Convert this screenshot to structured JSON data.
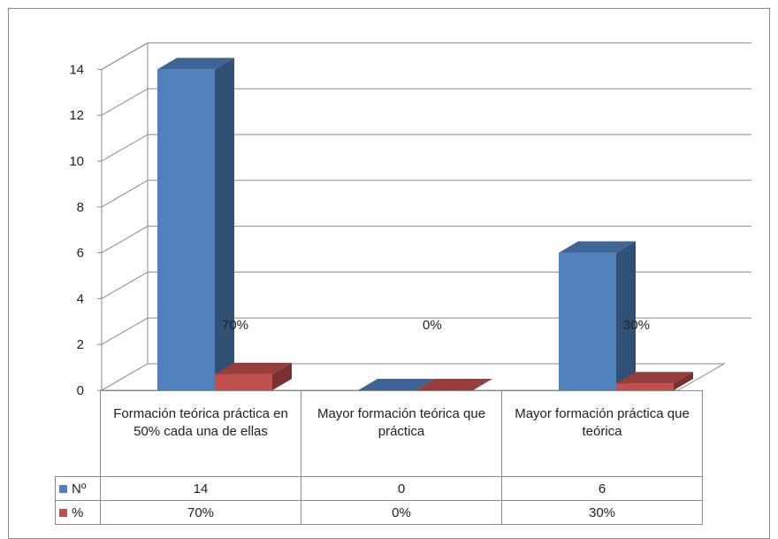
{
  "chart_data": {
    "type": "bar",
    "categories": [
      "Formación teórica práctica en 50% cada una de ellas",
      "Mayor formación teórica que práctica",
      "Mayor formación práctica que teórica"
    ],
    "series": [
      {
        "name": "Nº",
        "values": [
          14,
          0,
          6
        ],
        "color": "#4f81bd",
        "table_labels": [
          "14",
          "0",
          "6"
        ]
      },
      {
        "name": "%",
        "values": [
          0.7,
          0.0,
          0.3
        ],
        "color": "#c0504d",
        "table_labels": [
          "70%",
          "0%",
          "30%"
        ]
      }
    ],
    "data_labels": [
      "70%",
      "0%",
      "30%"
    ],
    "yticks": [
      "0",
      "2",
      "4",
      "6",
      "8",
      "10",
      "12",
      "14"
    ],
    "ylim": [
      0,
      14
    ],
    "grid": true,
    "style": "3d-clustered-column",
    "legend": "data-table",
    "title": "",
    "xlabel": "",
    "ylabel": ""
  }
}
